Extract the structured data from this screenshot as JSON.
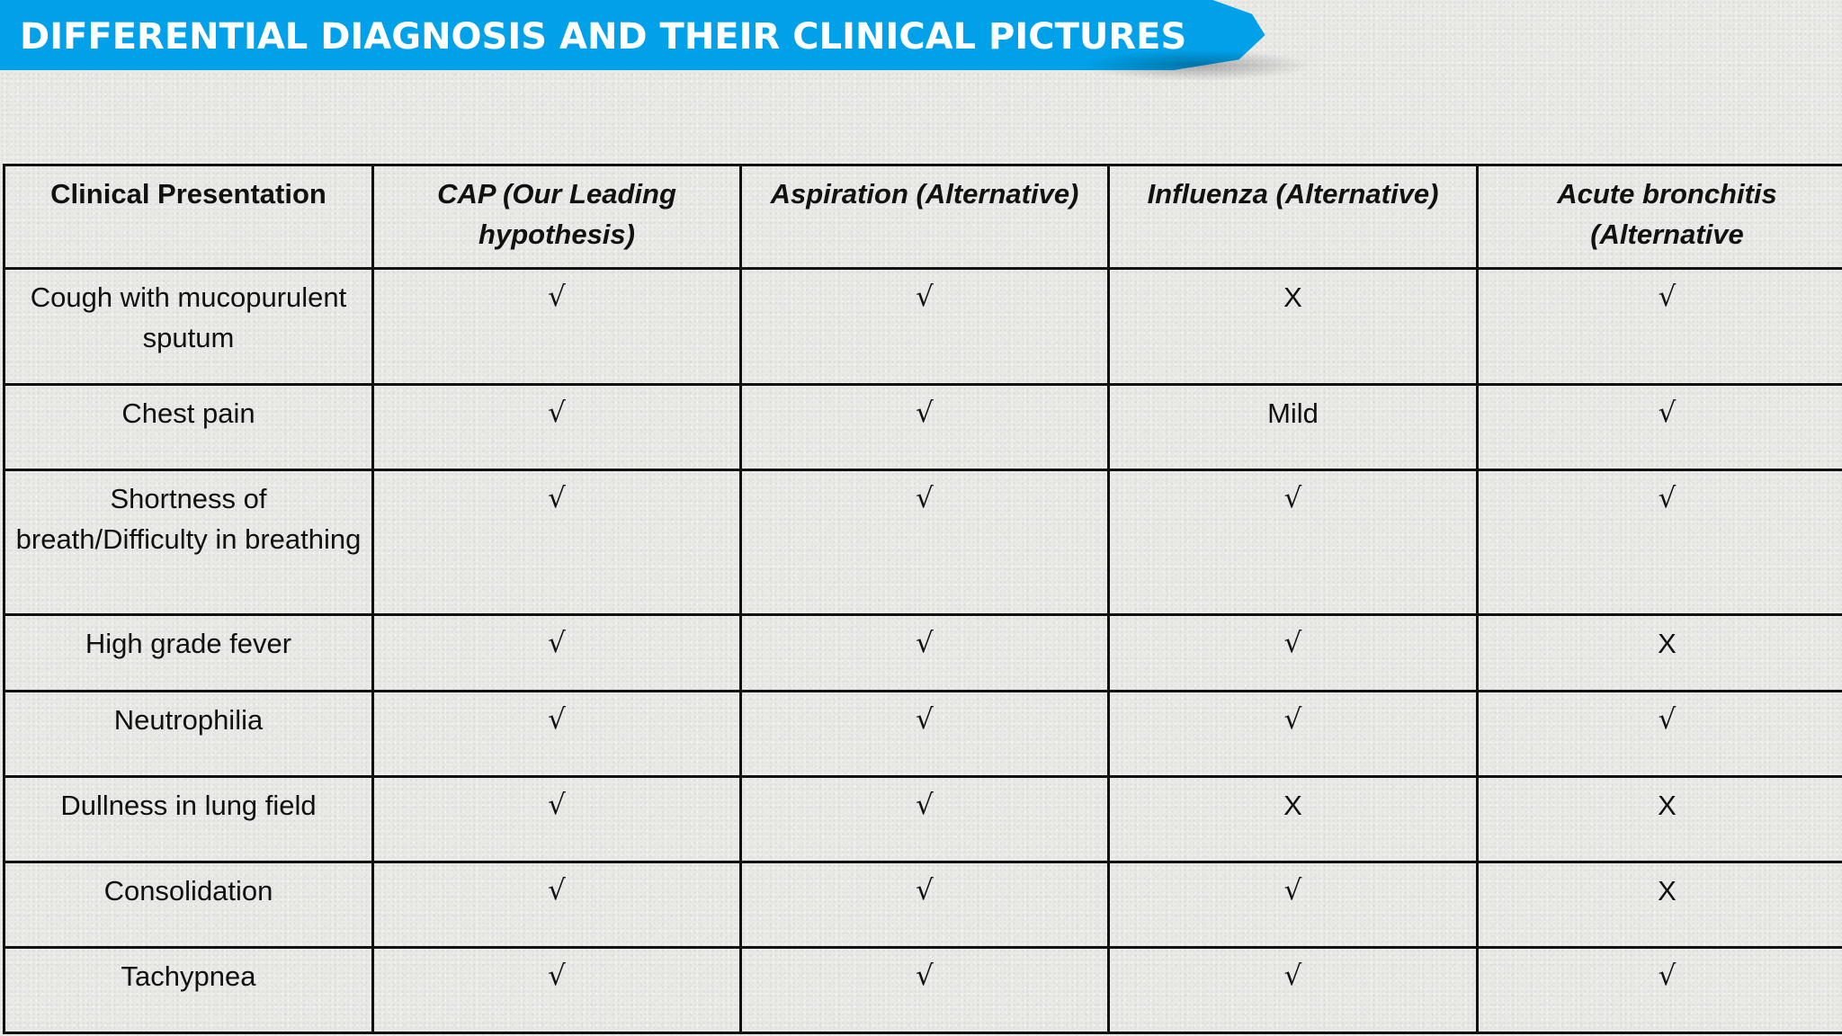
{
  "title": "DIFFERENTIAL DIAGNOSIS AND THEIR CLINICAL PICTURES",
  "colors": {
    "banner": "#00a1e9",
    "banner_text": "#ffffff",
    "table_border": "#111111",
    "background": "#e9e9e6"
  },
  "table": {
    "headers": [
      "Clinical Presentation",
      "CAP (Our Leading hypothesis)",
      "Aspiration (Alternative)",
      "Influenza (Alternative)",
      "Acute bronchitis (Alternative"
    ],
    "rows": [
      {
        "label": "Cough with mucopurulent sputum",
        "cells": [
          "√",
          "√",
          "X",
          "√"
        ]
      },
      {
        "label": "Chest pain",
        "cells": [
          "√",
          "√",
          "Mild",
          "√"
        ]
      },
      {
        "label": "Shortness of breath/Difficulty in breathing",
        "cells": [
          "√",
          "√",
          "√",
          "√"
        ]
      },
      {
        "label": "High grade fever",
        "cells": [
          "√",
          "√",
          "√",
          "X"
        ]
      },
      {
        "label": "Neutrophilia",
        "cells": [
          "√",
          "√",
          "√",
          "√"
        ]
      },
      {
        "label": "Dullness in lung field",
        "cells": [
          "√",
          "√",
          "X",
          "X"
        ]
      },
      {
        "label": "Consolidation",
        "cells": [
          "√",
          "√",
          "√",
          "X"
        ]
      },
      {
        "label": "Tachypnea",
        "cells": [
          "√",
          "√",
          "√",
          "√"
        ]
      }
    ]
  }
}
